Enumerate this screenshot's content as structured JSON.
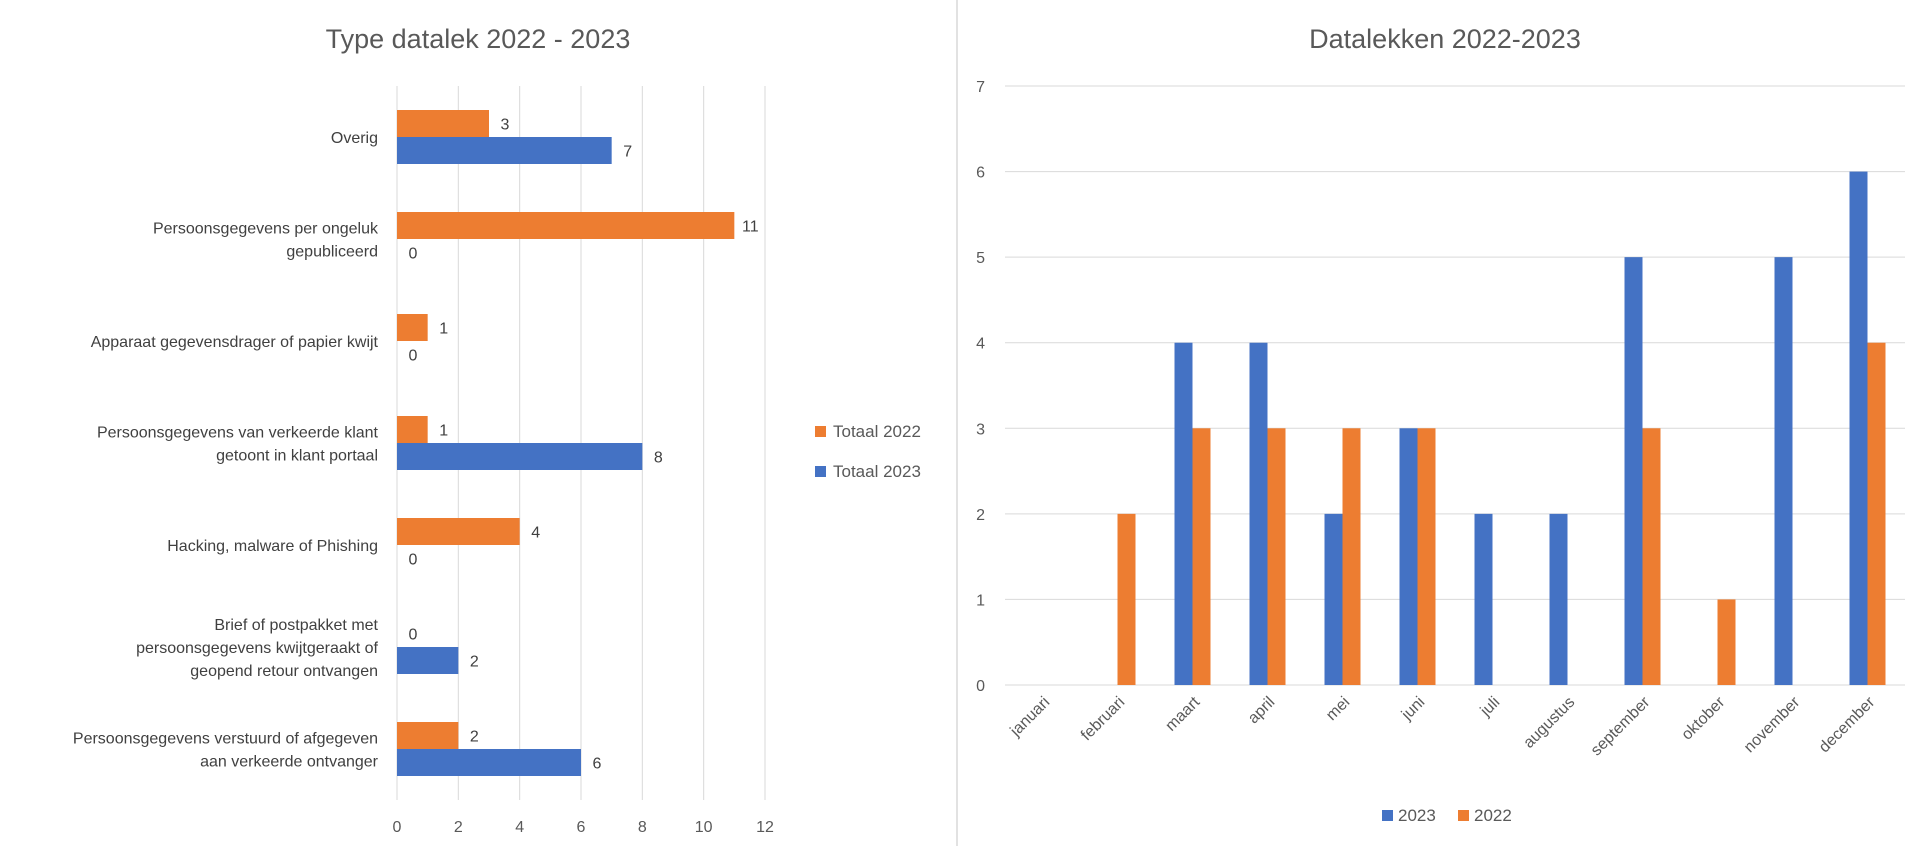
{
  "colors": {
    "series_2023": "#4472c4",
    "series_2022": "#ed7d31",
    "divider": "#d9d9d9"
  },
  "chart_data": [
    {
      "type": "bar",
      "orientation": "horizontal",
      "title": "Type datalek 2022 - 2023",
      "categories": [
        [
          "Overig"
        ],
        [
          "Persoonsgegevens per ongeluk",
          "gepubliceerd"
        ],
        [
          "Apparaat gegevensdrager of papier kwijt"
        ],
        [
          "Persoonsgegevens van verkeerde klant",
          "getoont in klant portaal"
        ],
        [
          "Hacking, malware of Phishing"
        ],
        [
          "Brief of postpakket met",
          "persoonsgegevens kwijtgeraakt of",
          "geopend retour ontvangen"
        ],
        [
          "Persoonsgegevens verstuurd of afgegeven",
          "aan verkeerde ontvanger"
        ]
      ],
      "series": [
        {
          "name": "Totaal 2022",
          "color": "#ed7d31",
          "values": [
            3,
            11,
            1,
            1,
            4,
            0,
            2
          ]
        },
        {
          "name": "Totaal 2023",
          "color": "#4472c4",
          "values": [
            7,
            0,
            0,
            8,
            0,
            2,
            6
          ]
        }
      ],
      "xlim": [
        0,
        12
      ],
      "xticks": [
        "0",
        "2",
        "4",
        "6",
        "8",
        "10",
        "12"
      ],
      "grid": true,
      "data_labels": true,
      "legend": "right"
    },
    {
      "type": "bar",
      "orientation": "vertical",
      "title": "Datalekken 2022-2023",
      "categories": [
        "januari",
        "februari",
        "maart",
        "april",
        "mei",
        "juni",
        "juli",
        "augustus",
        "september",
        "oktober",
        "november",
        "december"
      ],
      "series": [
        {
          "name": "2023",
          "color": "#4472c4",
          "values": [
            0,
            0,
            4,
            4,
            2,
            3,
            2,
            2,
            5,
            0,
            5,
            6
          ]
        },
        {
          "name": "2022",
          "color": "#ed7d31",
          "values": [
            0,
            2,
            3,
            3,
            3,
            3,
            0,
            0,
            3,
            1,
            0,
            4
          ]
        }
      ],
      "ylim": [
        0,
        7
      ],
      "yticks": [
        "0",
        "1",
        "2",
        "3",
        "4",
        "5",
        "6",
        "7"
      ],
      "grid": true,
      "legend": "bottom"
    }
  ]
}
